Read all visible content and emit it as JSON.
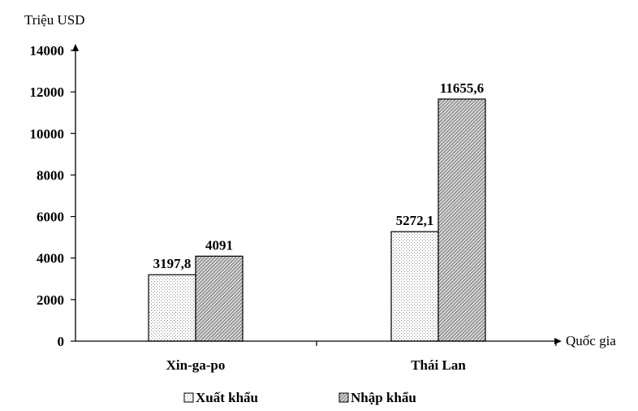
{
  "chart_data": {
    "type": "bar",
    "ylabel": "Triệu USD",
    "xlabel": "Quốc gia",
    "categories": [
      "Xin-ga-po",
      "Thái Lan"
    ],
    "series": [
      {
        "name": "Xuất khẩu",
        "values": [
          3197.8,
          5272.1
        ],
        "value_labels": [
          "3197,8",
          "5272,1"
        ],
        "pattern": "dotted"
      },
      {
        "name": "Nhập khẩu",
        "values": [
          4091,
          11655.6
        ],
        "value_labels": [
          "4091",
          "11655,6"
        ],
        "pattern": "hatched"
      }
    ],
    "ylim": [
      0,
      14000
    ],
    "yticks": [
      0,
      2000,
      4000,
      6000,
      8000,
      10000,
      12000,
      14000
    ],
    "ytick_labels": [
      "0",
      "2000",
      "4000",
      "6000",
      "8000",
      "10000",
      "12000",
      "14000"
    ],
    "grid": false,
    "legend": "bottom"
  }
}
